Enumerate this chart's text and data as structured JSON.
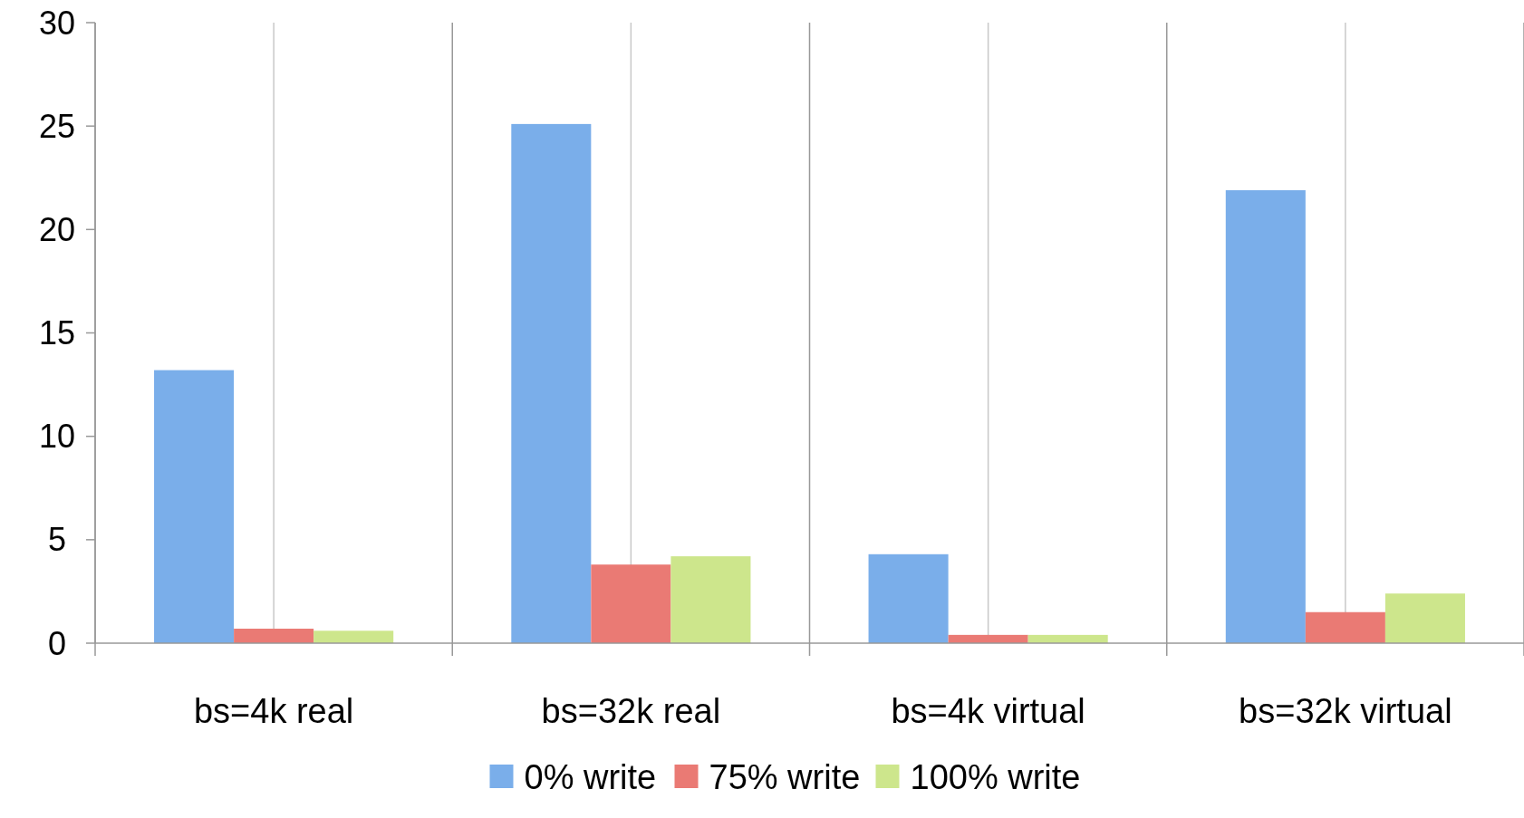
{
  "chart_data": {
    "type": "bar",
    "categories": [
      "bs=4k real",
      "bs=32k real",
      "bs=4k virtual",
      "bs=32k virtual"
    ],
    "series": [
      {
        "name": "0% write",
        "color": "#7aaeea",
        "values": [
          13.2,
          25.1,
          4.3,
          21.9
        ]
      },
      {
        "name": "75% write",
        "color": "#ea7a74",
        "values": [
          0.7,
          3.8,
          0.4,
          1.5
        ]
      },
      {
        "name": "100% write",
        "color": "#cde68c",
        "values": [
          0.6,
          4.2,
          0.4,
          2.4
        ]
      }
    ],
    "ylim": [
      0,
      30
    ],
    "yticks": [
      0,
      5,
      10,
      15,
      20,
      25,
      30
    ],
    "grid": "x",
    "legend": "bottom"
  }
}
